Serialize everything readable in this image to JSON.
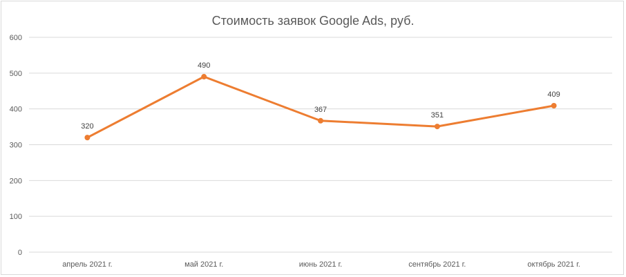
{
  "chart_data": {
    "type": "line",
    "title": "Стоимость заявок Google Ads, руб.",
    "xlabel": "",
    "ylabel": "",
    "categories": [
      "апрель 2021 г.",
      "май 2021 г.",
      "июнь 2021 г.",
      "сентябрь 2021 г.",
      "октябрь 2021 г."
    ],
    "series": [
      {
        "values": [
          320,
          490,
          367,
          351,
          409
        ],
        "data_labels": [
          "320",
          "490",
          "367",
          "351",
          "409"
        ],
        "color": "#ed7d31"
      }
    ],
    "ylim": [
      0,
      600
    ],
    "yticks": [
      0,
      100,
      200,
      300,
      400,
      500,
      600
    ],
    "ytick_labels": [
      "0",
      "100",
      "200",
      "300",
      "400",
      "500",
      "600"
    ],
    "grid": true,
    "legend": "none",
    "gridline_color": "#d9d9d9",
    "text_color": "#595959"
  }
}
